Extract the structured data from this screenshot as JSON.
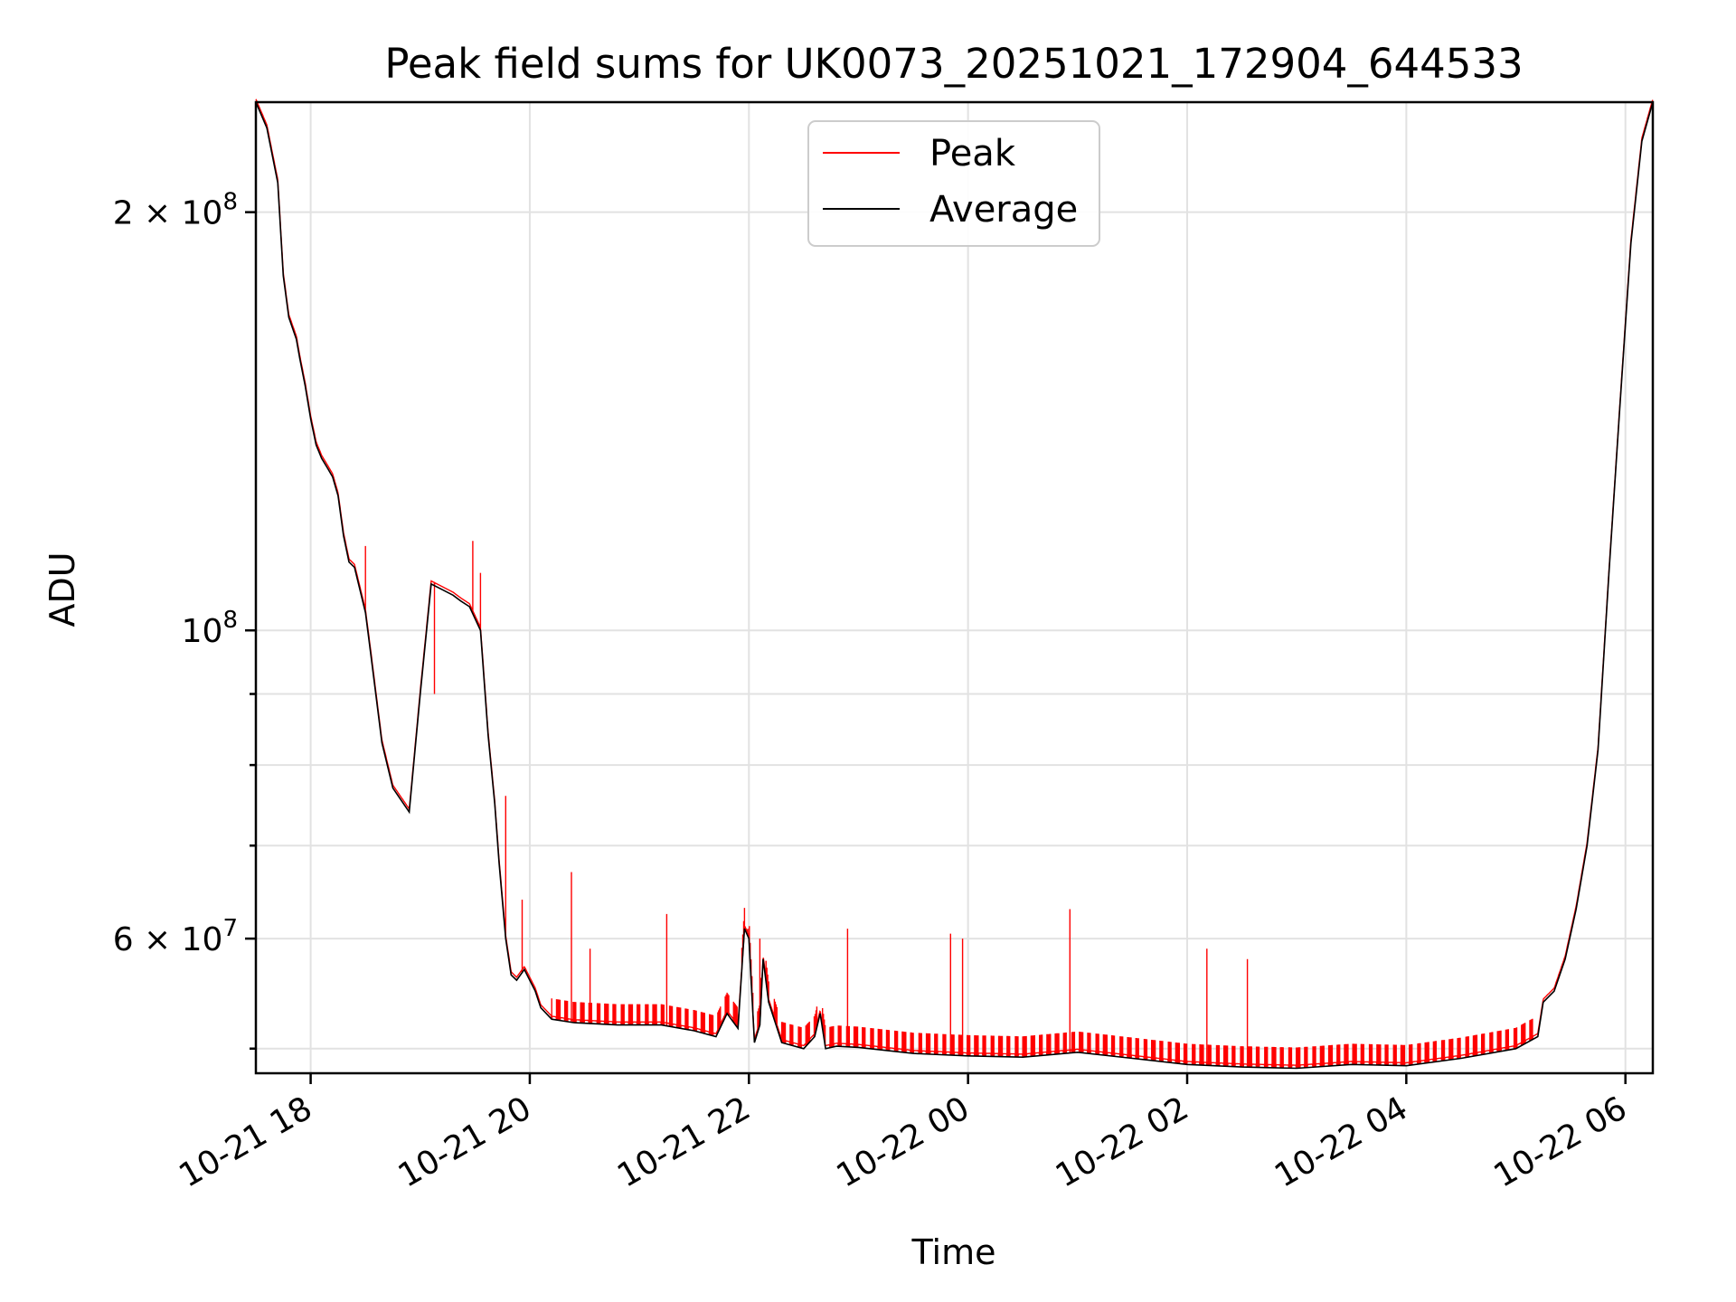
{
  "chart_data": {
    "type": "line",
    "title": "Peak field sums for UK0073_20251021_172904_644533",
    "xlabel": "Time",
    "ylabel": "ADU",
    "yscale": "log",
    "x_unit": "hours since 10-21 17:00",
    "xlim": [
      17.5,
      30.25
    ],
    "ylim": [
      48000000,
      240000000
    ],
    "grid": true,
    "legend_position": "upper-center",
    "x_ticks": [
      {
        "value": 18,
        "label": "10-21 18"
      },
      {
        "value": 20,
        "label": "10-21 20"
      },
      {
        "value": 22,
        "label": "10-21 22"
      },
      {
        "value": 24,
        "label": "10-22 00"
      },
      {
        "value": 26,
        "label": "10-22 02"
      },
      {
        "value": 28,
        "label": "10-22 04"
      },
      {
        "value": 30,
        "label": "10-22 06"
      }
    ],
    "y_ticks": [
      {
        "value": 200000000,
        "base": "2",
        "exp": "8",
        "prefix": "2 × 10"
      },
      {
        "value": 100000000,
        "base": "",
        "exp": "8",
        "prefix": "10"
      },
      {
        "value": 60000000,
        "base": "6",
        "exp": "7",
        "prefix": "6 × 10"
      }
    ],
    "y_minor_ticks": [
      50000000,
      70000000,
      80000000,
      90000000
    ],
    "series": [
      {
        "name": "Peak",
        "color": "#ff0000",
        "spikes": [
          [
            18.5,
            115000000
          ],
          [
            19.13,
            90000000
          ],
          [
            19.48,
            116000000
          ],
          [
            19.55,
            110000000
          ],
          [
            20.38,
            67000000
          ],
          [
            20.55,
            59000000
          ],
          [
            21.25,
            62500000
          ],
          [
            21.99,
            61000000
          ],
          [
            22.9,
            61000000
          ],
          [
            23.84,
            60500000
          ],
          [
            23.95,
            60000000
          ],
          [
            24.93,
            63000000
          ],
          [
            26.18,
            59000000
          ],
          [
            26.55,
            58000000
          ],
          [
            19.93,
            64000000
          ],
          [
            19.78,
            76000000
          ],
          [
            22.1,
            60000000
          ]
        ]
      },
      {
        "name": "Average",
        "color": "#000000",
        "x": [
          17.5,
          17.6,
          17.7,
          17.75,
          17.8,
          17.87,
          17.9,
          17.95,
          18.0,
          18.05,
          18.1,
          18.15,
          18.2,
          18.25,
          18.3,
          18.35,
          18.4,
          18.5,
          18.55,
          18.65,
          18.75,
          18.9,
          19.0,
          19.1,
          19.2,
          19.3,
          19.37,
          19.45,
          19.55,
          19.62,
          19.68,
          19.72,
          19.78,
          19.83,
          19.88,
          19.95,
          20.05,
          20.1,
          20.2,
          20.4,
          20.8,
          21.2,
          21.5,
          21.7,
          21.8,
          21.9,
          21.96,
          22.0,
          22.05,
          22.1,
          22.13,
          22.18,
          22.3,
          22.5,
          22.6,
          22.65,
          22.7,
          22.8,
          23.0,
          23.5,
          24.0,
          24.5,
          25.0,
          25.5,
          26.0,
          26.5,
          27.0,
          27.5,
          28.0,
          28.5,
          29.0,
          29.2,
          29.25,
          29.35,
          29.45,
          29.55,
          29.65,
          29.75,
          29.85,
          29.95,
          30.05,
          30.15,
          30.25
        ],
        "values": [
          240000000,
          230000000,
          210000000,
          180000000,
          168000000,
          162000000,
          157000000,
          150000000,
          142000000,
          136000000,
          133000000,
          131000000,
          129000000,
          125000000,
          117000000,
          112000000,
          111000000,
          103000000,
          96000000,
          83000000,
          77000000,
          74000000,
          90000000,
          108000000,
          107000000,
          106000000,
          105000000,
          104000000,
          100000000,
          84000000,
          75000000,
          68000000,
          60000000,
          56500000,
          56000000,
          57000000,
          55000000,
          53500000,
          52500000,
          52200000,
          52000000,
          52000000,
          51500000,
          51000000,
          53000000,
          51700000,
          61000000,
          60000000,
          50500000,
          52000000,
          58000000,
          54000000,
          50500000,
          50000000,
          51000000,
          53000000,
          50000000,
          50200000,
          50100000,
          49600000,
          49400000,
          49300000,
          49700000,
          49200000,
          48700000,
          48500000,
          48400000,
          48700000,
          48600000,
          49200000,
          50000000,
          51000000,
          54000000,
          55000000,
          58000000,
          63000000,
          70000000,
          82000000,
          110000000,
          145000000,
          190000000,
          225000000,
          240000000
        ]
      }
    ]
  }
}
